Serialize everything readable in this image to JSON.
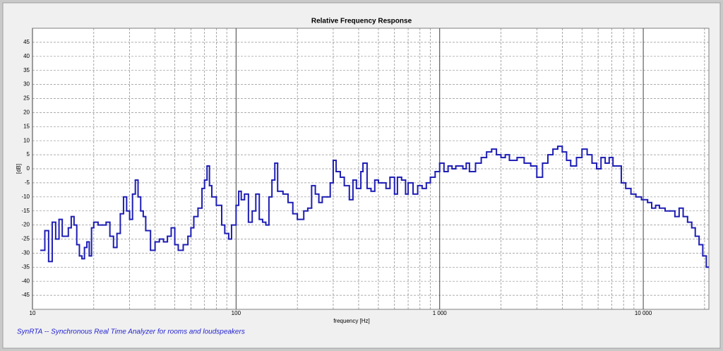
{
  "chart_data": {
    "type": "line",
    "title": "Relative Frequency Response",
    "xlabel": "frequency [Hz]",
    "ylabel": "[dB]",
    "footer": "SynRTA -- Synchronous Real Time Analyzer for rooms and loudspeakers",
    "xscale": "log",
    "step": true,
    "grid": true,
    "color": "#1e1eb4",
    "xlim": [
      10,
      21000
    ],
    "ylim": [
      -50,
      50
    ],
    "xticks": [
      10,
      100,
      {
        "value": 1000,
        "label": "1 000"
      },
      {
        "value": 10000,
        "label": "10 000"
      }
    ],
    "xminor": [
      20,
      30,
      40,
      50,
      60,
      70,
      80,
      90,
      200,
      300,
      400,
      500,
      600,
      700,
      800,
      900,
      2000,
      3000,
      4000,
      5000,
      6000,
      7000,
      8000,
      9000,
      20000
    ],
    "yticks": [
      -45,
      -40,
      -35,
      -30,
      -25,
      -20,
      -15,
      -10,
      -5,
      0,
      5,
      10,
      15,
      20,
      25,
      30,
      35,
      40,
      45
    ],
    "x": [
      11,
      11.5,
      12,
      12.5,
      13,
      13.5,
      14,
      15,
      15.5,
      16,
      16.5,
      17,
      17.5,
      18,
      18.5,
      19,
      19.5,
      20,
      21,
      22,
      23,
      24,
      25,
      26,
      27,
      28,
      29,
      30,
      31,
      32,
      33,
      34,
      35,
      36,
      38,
      40,
      42,
      44,
      46,
      48,
      50,
      52,
      55,
      58,
      60,
      62,
      65,
      68,
      70,
      72,
      74,
      76,
      80,
      85,
      88,
      92,
      95,
      100,
      103,
      106,
      110,
      115,
      120,
      125,
      130,
      135,
      140,
      145,
      150,
      155,
      160,
      170,
      180,
      190,
      200,
      215,
      225,
      235,
      245,
      255,
      265,
      280,
      290,
      300,
      310,
      325,
      340,
      360,
      375,
      390,
      410,
      420,
      440,
      460,
      480,
      500,
      520,
      545,
      570,
      600,
      620,
      650,
      680,
      700,
      740,
      780,
      820,
      860,
      900,
      950,
      1000,
      1050,
      1100,
      1150,
      1200,
      1300,
      1350,
      1400,
      1500,
      1600,
      1700,
      1800,
      1900,
      2000,
      2100,
      2200,
      2400,
      2600,
      2800,
      3000,
      3200,
      3400,
      3600,
      3800,
      4000,
      4200,
      4400,
      4700,
      5000,
      5300,
      5600,
      5900,
      6200,
      6500,
      6800,
      7100,
      7400,
      7800,
      8200,
      8700,
      9200,
      9800,
      10500,
      11000,
      11500,
      12000,
      12800,
      13500,
      14300,
      15000,
      15700,
      16500,
      17300,
      18000,
      18800,
      19600,
      20400
    ],
    "values": [
      -29,
      -22,
      -33,
      -19,
      -25,
      -18,
      -24,
      -21,
      -17,
      -20,
      -27,
      -31,
      -32,
      -28,
      -26,
      -31,
      -21,
      -19,
      -20,
      -20,
      -19,
      -24,
      -28,
      -23,
      -16,
      -10,
      -15,
      -18,
      -9,
      -4,
      -10,
      -15,
      -17,
      -22,
      -29,
      -26,
      -25,
      -26,
      -24,
      -21,
      -27,
      -29,
      -27,
      -24,
      -21,
      -17,
      -14,
      -7,
      -4,
      1,
      -6,
      -10,
      -13,
      -20,
      -23,
      -25,
      -20,
      -13,
      -8,
      -11,
      -9,
      -19,
      -15,
      -9,
      -18,
      -19,
      -20,
      -10,
      -4,
      2,
      -8,
      -9,
      -12,
      -16,
      -18,
      -15,
      -14,
      -6,
      -9,
      -12,
      -10,
      -10,
      -5,
      3,
      -1,
      -3,
      -6,
      -11,
      -4,
      -7,
      -1,
      2,
      -7,
      -8,
      -4,
      -5,
      -5,
      -7,
      -3,
      -9,
      -3,
      -4,
      -9,
      -5,
      -9,
      -6,
      -7,
      -5,
      -3,
      -1,
      2,
      -1,
      1,
      0,
      1,
      0,
      2,
      -1,
      2,
      4,
      6,
      7,
      5,
      4,
      5,
      3,
      4,
      2,
      1,
      -3,
      2,
      5,
      7,
      8,
      6,
      3,
      1,
      4,
      7,
      5,
      2,
      0,
      4,
      2,
      4,
      1,
      1,
      -5,
      -7,
      -9,
      -10,
      -11,
      -12,
      -14,
      -13,
      -14,
      -15,
      -15,
      -17,
      -14,
      -17,
      -19,
      -21,
      -24,
      -27,
      -31,
      -35
    ]
  }
}
